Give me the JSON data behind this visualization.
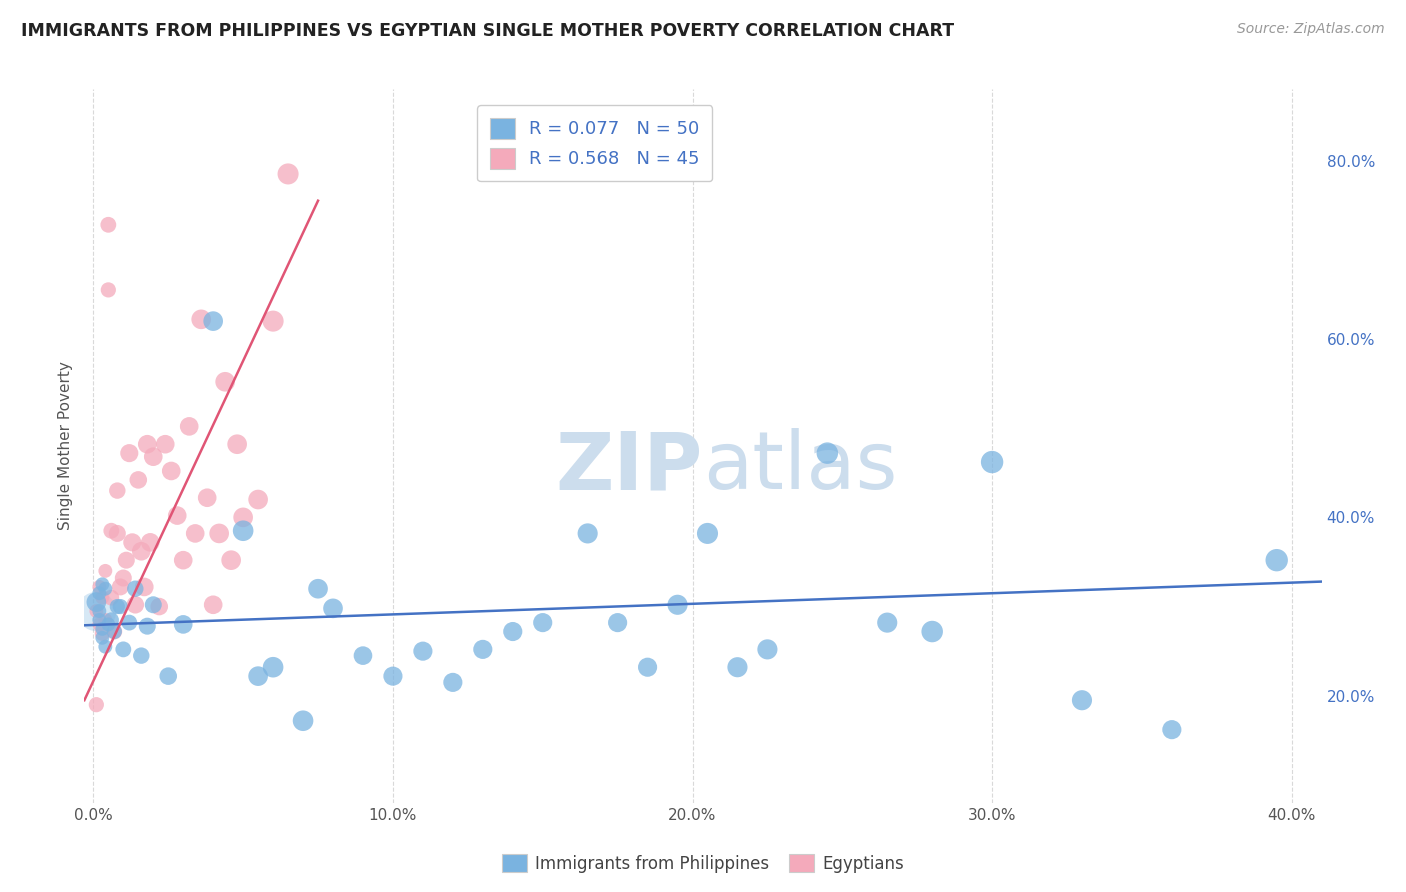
{
  "title": "IMMIGRANTS FROM PHILIPPINES VS EGYPTIAN SINGLE MOTHER POVERTY CORRELATION CHART",
  "source": "Source: ZipAtlas.com",
  "ylabel": "Single Mother Poverty",
  "x_ticks": [
    0.0,
    0.1,
    0.2,
    0.3,
    0.4
  ],
  "x_tick_labels": [
    "0.0%",
    "10.0%",
    "20.0%",
    "30.0%",
    "40.0%"
  ],
  "y_ticks": [
    0.2,
    0.4,
    0.6,
    0.8
  ],
  "y_tick_labels": [
    "20.0%",
    "40.0%",
    "60.0%",
    "80.0%"
  ],
  "xlim": [
    -0.003,
    0.41
  ],
  "ylim": [
    0.08,
    0.88
  ],
  "R_blue": 0.077,
  "N_blue": 50,
  "R_pink": 0.568,
  "N_pink": 45,
  "legend_blue_label": "Immigrants from Philippines",
  "legend_pink_label": "Egyptians",
  "blue_color": "#7ab3e0",
  "pink_color": "#f4aabb",
  "blue_line_color": "#4472c4",
  "pink_line_color": "#e05575",
  "watermark_zip": "ZIP",
  "watermark_atlas": "atlas",
  "watermark_color": "#ccdded",
  "blue_points_x": [
    0.001,
    0.002,
    0.002,
    0.002,
    0.003,
    0.003,
    0.003,
    0.004,
    0.004,
    0.005,
    0.006,
    0.007,
    0.008,
    0.009,
    0.01,
    0.012,
    0.014,
    0.016,
    0.018,
    0.02,
    0.025,
    0.03,
    0.04,
    0.05,
    0.055,
    0.06,
    0.07,
    0.075,
    0.08,
    0.09,
    0.1,
    0.11,
    0.12,
    0.13,
    0.14,
    0.15,
    0.165,
    0.175,
    0.185,
    0.195,
    0.205,
    0.215,
    0.225,
    0.245,
    0.265,
    0.28,
    0.3,
    0.33,
    0.36,
    0.395
  ],
  "blue_points_y": [
    0.305,
    0.295,
    0.285,
    0.315,
    0.325,
    0.275,
    0.265,
    0.255,
    0.32,
    0.28,
    0.285,
    0.272,
    0.3,
    0.3,
    0.252,
    0.282,
    0.32,
    0.245,
    0.278,
    0.302,
    0.222,
    0.28,
    0.62,
    0.385,
    0.222,
    0.232,
    0.172,
    0.32,
    0.298,
    0.245,
    0.222,
    0.25,
    0.215,
    0.252,
    0.272,
    0.282,
    0.382,
    0.282,
    0.232,
    0.302,
    0.382,
    0.232,
    0.252,
    0.472,
    0.282,
    0.272,
    0.462,
    0.195,
    0.162,
    0.352
  ],
  "blue_points_size": [
    200,
    100,
    100,
    100,
    100,
    100,
    100,
    100,
    100,
    100,
    120,
    120,
    120,
    120,
    130,
    130,
    140,
    140,
    150,
    150,
    160,
    180,
    200,
    220,
    200,
    220,
    220,
    200,
    200,
    180,
    190,
    190,
    190,
    190,
    190,
    190,
    210,
    190,
    190,
    210,
    230,
    210,
    210,
    240,
    210,
    240,
    260,
    210,
    190,
    260
  ],
  "pink_points_x": [
    0.001,
    0.001,
    0.002,
    0.002,
    0.003,
    0.003,
    0.004,
    0.004,
    0.005,
    0.005,
    0.006,
    0.006,
    0.007,
    0.008,
    0.008,
    0.009,
    0.01,
    0.011,
    0.012,
    0.013,
    0.014,
    0.015,
    0.016,
    0.017,
    0.018,
    0.019,
    0.02,
    0.022,
    0.024,
    0.026,
    0.028,
    0.03,
    0.032,
    0.034,
    0.036,
    0.038,
    0.04,
    0.042,
    0.044,
    0.046,
    0.048,
    0.05,
    0.055,
    0.06,
    0.065
  ],
  "pink_points_y": [
    0.19,
    0.295,
    0.28,
    0.322,
    0.31,
    0.27,
    0.34,
    0.285,
    0.655,
    0.728,
    0.31,
    0.385,
    0.272,
    0.43,
    0.382,
    0.322,
    0.332,
    0.352,
    0.472,
    0.372,
    0.302,
    0.442,
    0.362,
    0.322,
    0.482,
    0.372,
    0.468,
    0.3,
    0.482,
    0.452,
    0.402,
    0.352,
    0.502,
    0.382,
    0.622,
    0.422,
    0.302,
    0.382,
    0.552,
    0.352,
    0.482,
    0.4,
    0.42,
    0.62,
    0.785
  ],
  "pink_points_size": [
    120,
    100,
    100,
    100,
    100,
    120,
    100,
    100,
    120,
    130,
    130,
    130,
    130,
    140,
    150,
    150,
    150,
    150,
    170,
    170,
    160,
    160,
    180,
    180,
    180,
    180,
    180,
    160,
    180,
    180,
    180,
    180,
    180,
    180,
    200,
    180,
    180,
    200,
    200,
    200,
    200,
    200,
    200,
    230,
    230
  ],
  "blue_large_size": 800,
  "blue_line_x0": -0.003,
  "blue_line_x1": 0.41,
  "blue_line_y0": 0.279,
  "blue_line_y1": 0.328,
  "pink_line_x0": -0.003,
  "pink_line_x1": 0.075,
  "pink_line_y0": 0.195,
  "pink_line_y1": 0.755
}
